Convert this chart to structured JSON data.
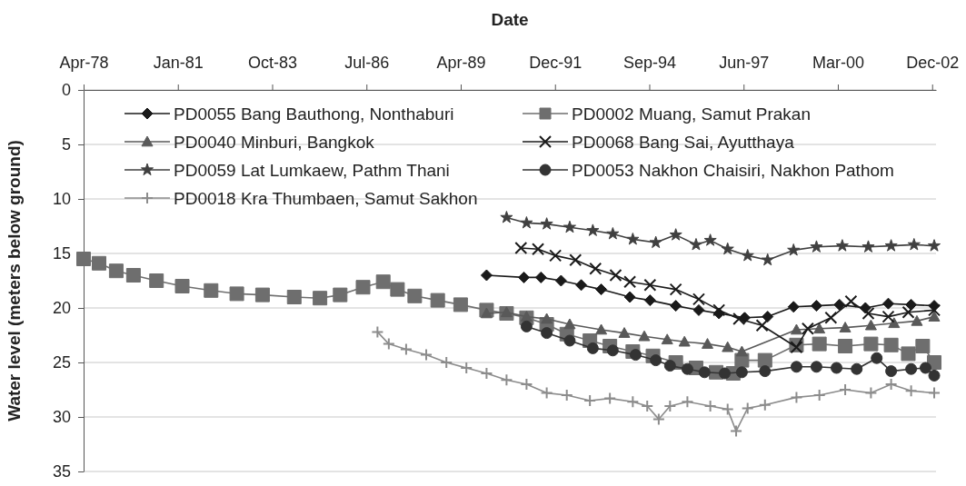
{
  "chart_data": {
    "type": "line",
    "xlabel": "Date",
    "ylabel": "Water level (meters below ground)",
    "xlim": [
      "1978-04-20",
      "2003-01-20"
    ],
    "xticks": [
      {
        "value": "1978-04-20",
        "label": "Apr-78"
      },
      {
        "value": "1981-01-14",
        "label": "Jan-81"
      },
      {
        "value": "1983-10-11",
        "label": "Oct-83"
      },
      {
        "value": "1986-07-07",
        "label": "Jul-86"
      },
      {
        "value": "1989-04-02",
        "label": "Apr-89"
      },
      {
        "value": "1991-12-28",
        "label": "Dec-91"
      },
      {
        "value": "1994-09-23",
        "label": "Sep-94"
      },
      {
        "value": "1997-06-19",
        "label": "Jun-97"
      },
      {
        "value": "2000-03-15",
        "label": "Mar-00"
      },
      {
        "value": "2002-12-10",
        "label": "Dec-02"
      }
    ],
    "ylim": [
      35,
      0
    ],
    "yticks": [
      0,
      5,
      10,
      15,
      20,
      25,
      30,
      35
    ],
    "grid": "y",
    "legend": "top",
    "line_style": "solid",
    "series": [
      {
        "name": "PD0055 Bang Bauthong, Nonthaburi",
        "color": "#1a1a1a",
        "marker": "diamond",
        "x": [
          "1990-01",
          "1991-02",
          "1991-08",
          "1992-03",
          "1992-10",
          "1993-05",
          "1994-03",
          "1994-10",
          "1995-07",
          "1996-03",
          "1996-10",
          "1997-07",
          "1998-03",
          "1998-12",
          "1999-08",
          "2000-04",
          "2001-01",
          "2001-09",
          "2002-05",
          "2003-01"
        ],
        "values": [
          17.0,
          17.2,
          17.2,
          17.5,
          17.9,
          18.3,
          19.0,
          19.3,
          19.8,
          20.2,
          20.5,
          20.9,
          20.8,
          19.9,
          19.8,
          19.7,
          20.0,
          19.6,
          19.7,
          19.8
        ]
      },
      {
        "name": "PD0002 Muang, Samut Prakan",
        "color": "#6e6e6e",
        "marker": "square",
        "x": [
          "1978-04-20",
          "1978-10",
          "1979-04",
          "1979-10",
          "1980-06",
          "1981-03",
          "1982-01",
          "1982-10",
          "1983-07",
          "1984-06",
          "1985-03",
          "1985-10",
          "1986-06",
          "1987-01",
          "1987-06",
          "1987-12",
          "1988-08",
          "1989-04",
          "1990-01",
          "1990-08",
          "1991-03",
          "1991-10",
          "1992-05",
          "1993-01",
          "1993-08",
          "1994-04",
          "1994-11",
          "1995-07",
          "1996-02",
          "1996-09",
          "1997-03",
          "1997-06",
          "1998-02",
          "1999-01",
          "1999-09",
          "2000-06",
          "2001-03",
          "2001-10",
          "2002-04",
          "2002-09",
          "2003-01"
        ],
        "values": [
          15.5,
          15.9,
          16.6,
          17.0,
          17.5,
          18.0,
          18.4,
          18.7,
          18.8,
          19.0,
          19.1,
          18.8,
          18.1,
          17.6,
          18.3,
          18.9,
          19.3,
          19.7,
          20.2,
          20.5,
          20.9,
          21.5,
          22.4,
          23.0,
          23.5,
          24.0,
          24.4,
          25.0,
          25.5,
          25.9,
          26.0,
          24.8,
          24.8,
          23.4,
          23.3,
          23.5,
          23.3,
          23.4,
          24.2,
          23.5,
          25.0
        ]
      },
      {
        "name": "PD0040 Minburi, Bangkok",
        "color": "#595959",
        "marker": "triangle",
        "x": [
          "1990-01",
          "1990-08",
          "1991-03",
          "1991-10",
          "1992-06",
          "1993-05",
          "1994-01",
          "1994-08",
          "1995-04",
          "1995-10",
          "1996-06",
          "1997-01",
          "1997-06",
          "1999-01",
          "1999-09",
          "2000-06",
          "2001-03",
          "2001-11",
          "2002-07",
          "2003-01"
        ],
        "values": [
          20.5,
          20.4,
          20.8,
          21.0,
          21.5,
          22.0,
          22.3,
          22.6,
          22.9,
          23.1,
          23.3,
          23.6,
          24.0,
          22.0,
          21.9,
          21.8,
          21.6,
          21.4,
          21.2,
          20.8
        ]
      },
      {
        "name": "PD0068 Bang Sai, Ayutthaya",
        "color": "#1a1a1a",
        "marker": "x",
        "x": [
          "1991-01",
          "1991-07",
          "1992-01",
          "1992-08",
          "1993-03",
          "1993-10",
          "1994-03",
          "1994-10",
          "1995-07",
          "1996-03",
          "1996-10",
          "1997-05",
          "1998-01",
          "1999-01",
          "1999-05",
          "2000-01",
          "2000-08",
          "2001-02",
          "2001-09",
          "2002-04",
          "2003-01"
        ],
        "values": [
          14.5,
          14.6,
          15.2,
          15.6,
          16.4,
          17.0,
          17.6,
          17.9,
          18.3,
          19.2,
          20.2,
          21.0,
          21.6,
          23.6,
          21.9,
          20.9,
          19.4,
          20.5,
          20.8,
          20.4,
          20.2
        ]
      },
      {
        "name": "PD0059 Lat Lumkaew, Pathm Thani",
        "color": "#404040",
        "marker": "star",
        "x": [
          "1990-08",
          "1991-03",
          "1991-10",
          "1992-06",
          "1993-02",
          "1993-09",
          "1994-04",
          "1994-12",
          "1995-07",
          "1996-02",
          "1996-07",
          "1997-01",
          "1997-08",
          "1998-03",
          "1998-12",
          "1999-08",
          "2000-05",
          "2001-02",
          "2001-10",
          "2002-06",
          "2003-01"
        ],
        "values": [
          11.7,
          12.2,
          12.3,
          12.6,
          12.9,
          13.2,
          13.7,
          14.0,
          13.3,
          14.2,
          13.8,
          14.6,
          15.2,
          15.6,
          14.7,
          14.4,
          14.3,
          14.4,
          14.3,
          14.2,
          14.3
        ]
      },
      {
        "name": "PD0053 Nakhon Chaisiri, Nakhon Pathom",
        "color": "#333333",
        "marker": "circle",
        "x": [
          "1991-03",
          "1991-10",
          "1992-06",
          "1993-02",
          "1993-09",
          "1994-05",
          "1994-12",
          "1995-05",
          "1995-11",
          "1996-05",
          "1996-12",
          "1997-06",
          "1998-02",
          "1999-01",
          "1999-08",
          "2000-03",
          "2000-10",
          "2001-05",
          "2001-10",
          "2002-05",
          "2002-10",
          "2003-01"
        ],
        "values": [
          21.7,
          22.3,
          23.0,
          23.7,
          23.9,
          24.3,
          24.8,
          25.3,
          25.6,
          25.9,
          26.0,
          25.9,
          25.8,
          25.4,
          25.4,
          25.5,
          25.6,
          24.6,
          25.8,
          25.6,
          25.5,
          26.2
        ]
      },
      {
        "name": "PD0018 Kra Thumbaen, Samut Sakhon",
        "color": "#8c8c8c",
        "marker": "cross",
        "x": [
          "1986-11",
          "1987-03",
          "1987-09",
          "1988-04",
          "1988-11",
          "1989-06",
          "1990-01",
          "1990-08",
          "1991-03",
          "1991-10",
          "1992-05",
          "1993-01",
          "1993-08",
          "1994-04",
          "1994-09",
          "1995-01",
          "1995-05",
          "1995-11",
          "1996-07",
          "1997-01",
          "1997-04",
          "1997-08",
          "1998-02",
          "1999-01",
          "1999-09",
          "2000-06",
          "2001-03",
          "2001-10",
          "2002-05",
          "2003-01"
        ],
        "values": [
          22.2,
          23.3,
          23.8,
          24.3,
          25.0,
          25.5,
          26.0,
          26.6,
          27.0,
          27.8,
          28.0,
          28.5,
          28.3,
          28.6,
          29.0,
          30.2,
          29.0,
          28.6,
          29.0,
          29.3,
          31.3,
          29.2,
          28.9,
          28.2,
          28.0,
          27.5,
          27.8,
          27.0,
          27.6,
          27.8
        ]
      }
    ]
  }
}
